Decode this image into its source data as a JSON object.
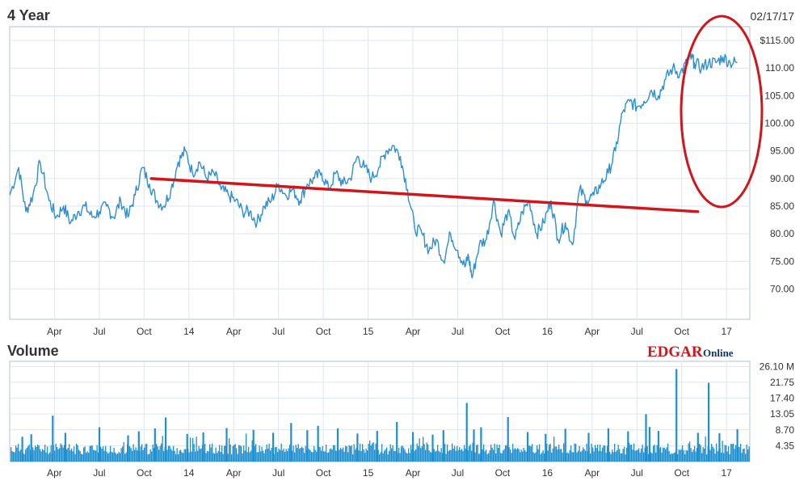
{
  "price_panel": {
    "title": "4 Year",
    "date": "02/17/17"
  },
  "volume_panel": {
    "title": "Volume"
  },
  "logo": {
    "main": "EDGAR",
    "sub": "Online"
  },
  "colors": {
    "line": "#2f8fd1",
    "volume": "#1f8fce",
    "trend": "#d0151b",
    "highlight": "#d0151b"
  },
  "chart_data": [
    {
      "type": "line",
      "title": "4 Year",
      "yaxis_tick_labels": [
        "$115.00",
        "110.00",
        "105.00",
        "100.00",
        "95.00",
        "90.00",
        "85.00",
        "80.00",
        "75.00",
        "70.00"
      ],
      "y_ticks": [
        115,
        110,
        105,
        100,
        95,
        90,
        85,
        80,
        75,
        70
      ],
      "ylim": [
        64.5,
        117.5
      ],
      "xaxis_tick_labels": [
        "Apr",
        "Jul",
        "Oct",
        "14",
        "Apr",
        "Jul",
        "Oct",
        "15",
        "Apr",
        "Jul",
        "Oct",
        "16",
        "Apr",
        "Jul",
        "Oct",
        "17"
      ],
      "x_ticks": [
        0.25,
        0.5,
        0.75,
        1.0,
        1.25,
        1.5,
        1.75,
        2.0,
        2.25,
        2.5,
        2.75,
        3.0,
        3.25,
        3.5,
        3.75,
        4.0
      ],
      "xlim": [
        0.0,
        4.13
      ],
      "x": [
        0.0,
        0.05,
        0.09,
        0.13,
        0.17,
        0.22,
        0.26,
        0.3,
        0.34,
        0.38,
        0.42,
        0.46,
        0.5,
        0.54,
        0.58,
        0.62,
        0.66,
        0.7,
        0.74,
        0.78,
        0.82,
        0.86,
        0.9,
        0.94,
        0.98,
        1.02,
        1.06,
        1.1,
        1.14,
        1.18,
        1.22,
        1.26,
        1.3,
        1.34,
        1.38,
        1.42,
        1.46,
        1.5,
        1.54,
        1.58,
        1.62,
        1.66,
        1.7,
        1.74,
        1.78,
        1.82,
        1.86,
        1.9,
        1.94,
        1.98,
        2.02,
        2.06,
        2.1,
        2.14,
        2.18,
        2.22,
        2.26,
        2.3,
        2.34,
        2.38,
        2.42,
        2.46,
        2.5,
        2.54,
        2.56,
        2.58,
        2.62,
        2.66,
        2.7,
        2.74,
        2.78,
        2.82,
        2.86,
        2.9,
        2.94,
        2.98,
        3.02,
        3.06,
        3.1,
        3.14,
        3.18,
        3.22,
        3.26,
        3.3,
        3.34,
        3.38,
        3.42,
        3.46,
        3.5,
        3.54,
        3.58,
        3.62,
        3.66,
        3.7,
        3.74,
        3.78,
        3.8,
        3.82,
        3.86,
        3.9,
        3.94,
        3.98,
        4.02,
        4.06
      ],
      "y": [
        87,
        92,
        84,
        87,
        93,
        86,
        83,
        85,
        82,
        84,
        85,
        83,
        84,
        85,
        83,
        86,
        83,
        87,
        92,
        89,
        86,
        85,
        88,
        93,
        95,
        91,
        93,
        90,
        91,
        88,
        87,
        86,
        84,
        84,
        82,
        85,
        86,
        89,
        87,
        88,
        86,
        89,
        90,
        91,
        88,
        91,
        89,
        90,
        94,
        92,
        90,
        92,
        95,
        96,
        94,
        88,
        81,
        80,
        77,
        79,
        75,
        80,
        77,
        74,
        76,
        72,
        78,
        79,
        86,
        80,
        84,
        79,
        84,
        86,
        80,
        82,
        86,
        79,
        82,
        78,
        88,
        86,
        87,
        89,
        91,
        95,
        102,
        104,
        103,
        104,
        106,
        105,
        108,
        110,
        109,
        111,
        112,
        111,
        110,
        111,
        111,
        112,
        111,
        111
      ],
      "trend_line": {
        "x": [
          0.79,
          3.84
        ],
        "y": [
          90,
          84
        ]
      }
    },
    {
      "type": "bar",
      "title": "Volume",
      "yaxis_tick_labels": [
        "26.10 M",
        "21.75",
        "17.40",
        "13.05",
        "8.70",
        "4.35"
      ],
      "y_ticks": [
        26.1,
        21.75,
        17.4,
        13.05,
        8.7,
        4.35
      ],
      "ylim": [
        0,
        27.5
      ],
      "xaxis_tick_labels": [
        "Apr",
        "Jul",
        "Oct",
        "14",
        "Apr",
        "Jul",
        "Oct",
        "15",
        "Apr",
        "Jul",
        "Oct",
        "16",
        "Apr",
        "Jul",
        "Oct",
        "17"
      ],
      "x_ticks": [
        0.25,
        0.5,
        0.75,
        1.0,
        1.25,
        1.5,
        1.75,
        2.0,
        2.25,
        2.5,
        2.75,
        3.0,
        3.25,
        3.5,
        3.75,
        4.0
      ],
      "xlim": [
        0.0,
        4.13
      ],
      "baseline": 4.35,
      "x": [
        0.07,
        0.12,
        0.24,
        0.31,
        0.5,
        0.66,
        0.72,
        0.81,
        0.87,
        0.99,
        1.08,
        1.21,
        1.36,
        1.47,
        1.57,
        1.66,
        1.72,
        1.83,
        1.94,
        2.05,
        2.16,
        2.25,
        2.36,
        2.42,
        2.55,
        2.59,
        2.63,
        2.78,
        2.89,
        2.99,
        3.1,
        3.23,
        3.34,
        3.45,
        3.55,
        3.57,
        3.62,
        3.72,
        3.84,
        3.9,
        3.96,
        4.06
      ],
      "values": [
        6.8,
        7.5,
        12.6,
        7.9,
        9.4,
        7.2,
        8.3,
        9.1,
        12.1,
        7.6,
        8.0,
        9.2,
        8.7,
        7.9,
        10.6,
        8.6,
        9.8,
        9.1,
        7.7,
        8.4,
        10.9,
        8.1,
        7.4,
        8.6,
        16.1,
        8.8,
        9.4,
        12.2,
        8.1,
        7.6,
        9.0,
        7.9,
        9.1,
        8.3,
        13.0,
        9.5,
        8.4,
        25.4,
        7.9,
        21.6,
        7.8,
        8.9
      ]
    }
  ]
}
